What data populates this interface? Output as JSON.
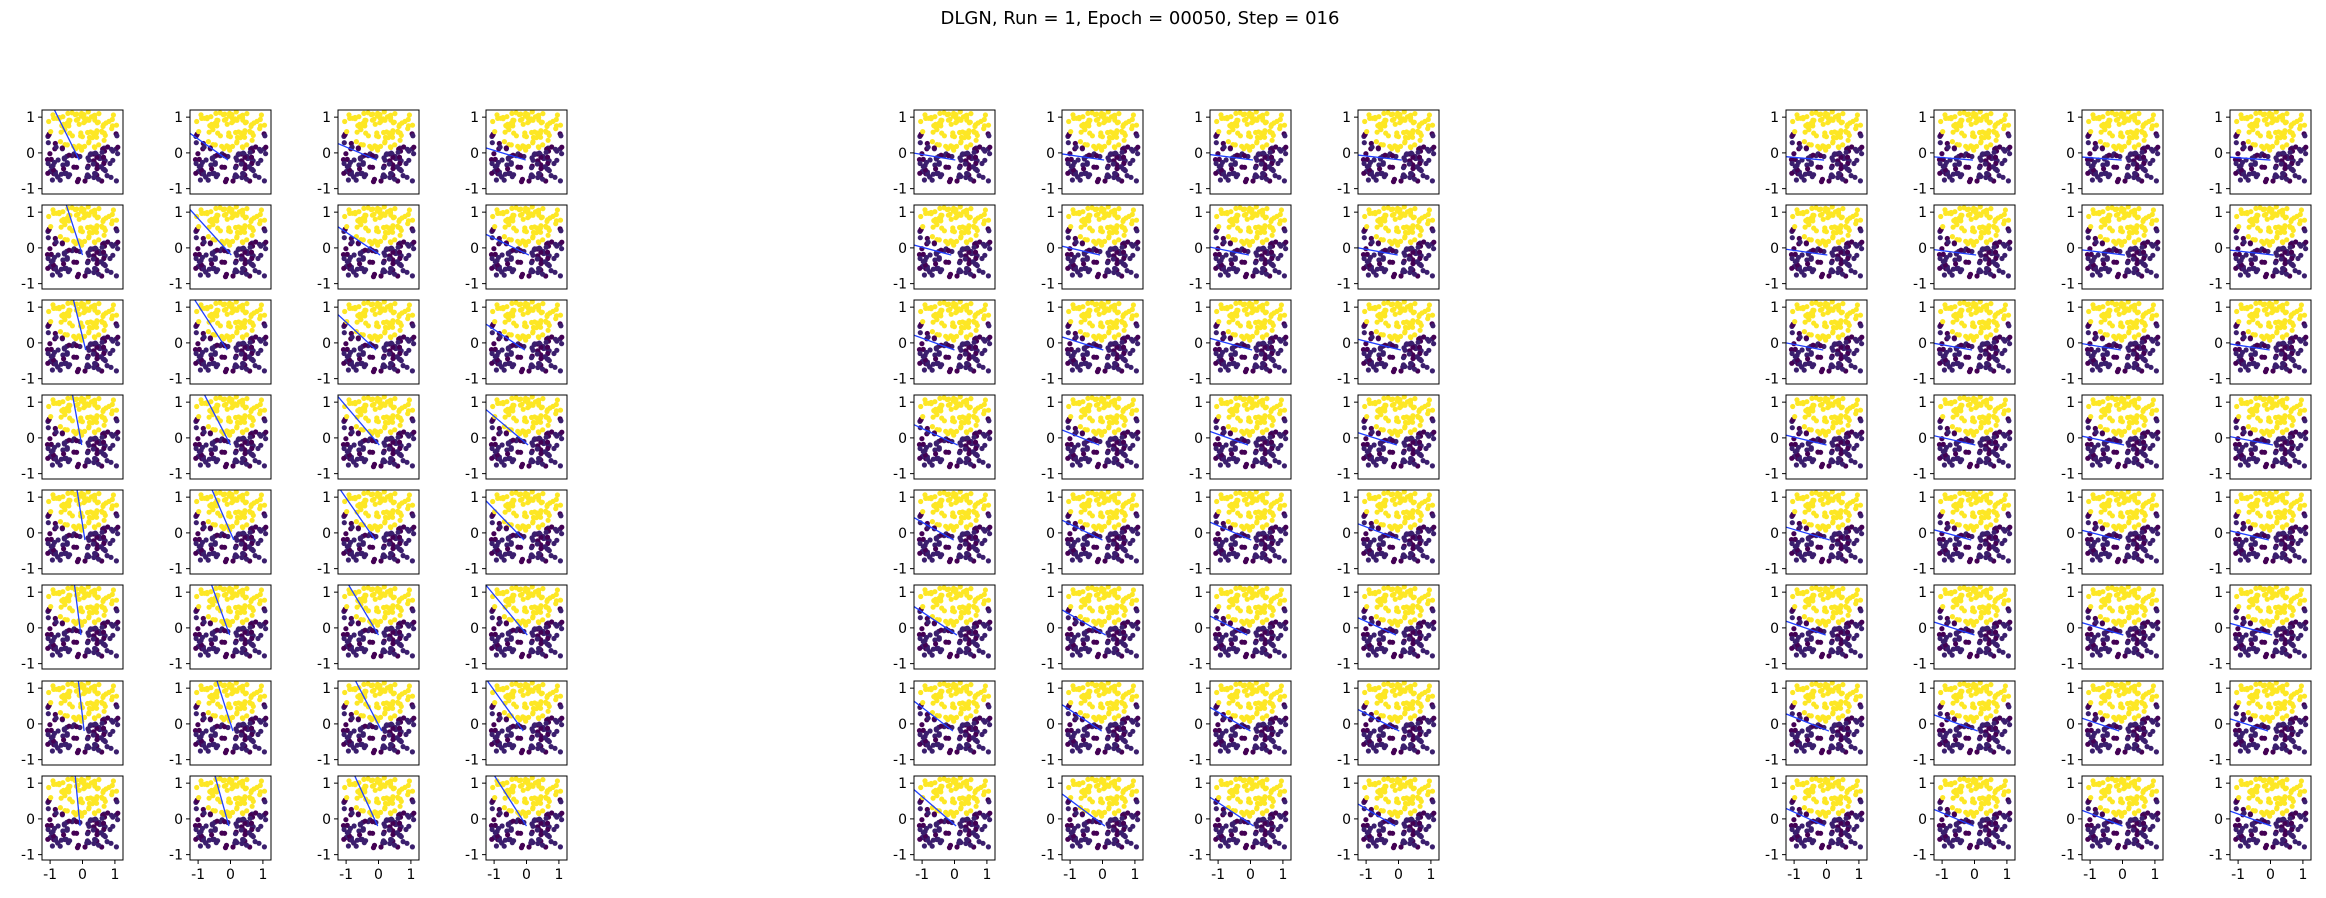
{
  "title": "DLGN, Run = 1, Epoch = 00050, Step = 016",
  "colors": {
    "yellow_class": "#fde725",
    "purple_class": "#3b1f6e",
    "purple_dark": "#440154",
    "region_blue": "#8fb8d9",
    "region_green": "#9ab35c",
    "boundary_line": "#e8101b",
    "arrow": "#1f3fff",
    "axes": "#000000"
  },
  "chart_data": {
    "type": "scatter",
    "grid": false,
    "layout": "3 groups x 8 rows x 4 columns of small subplots",
    "xlim": [
      -1.25,
      1.25
    ],
    "ylim": [
      -1.15,
      1.2
    ],
    "xticks": [
      "-1",
      "0",
      "1"
    ],
    "yticks": [
      "1",
      "0",
      "-1"
    ],
    "xtick_values": [
      -1,
      0,
      1
    ],
    "ytick_values": [
      1,
      0,
      -1
    ],
    "dataset": "two classes: yellow cap above a U-shaped curve, purple points below it",
    "decision_lines_deg": [
      [
        [
          80,
          -32,
          88,
          -12
        ],
        [
          -60,
          -40,
          -87,
          -55
        ],
        [
          30,
          45,
          -15,
          10
        ],
        [
          -50,
          -40,
          45,
          -32
        ]
      ],
      [
        [
          -15,
          -25,
          -10,
          -3
        ],
        [
          40,
          3,
          -5,
          -12
        ],
        [
          -55,
          40,
          60,
          -5
        ],
        [
          -35,
          -20,
          40,
          -5
        ]
      ],
      [
        [
          -80,
          70,
          10,
          -30
        ],
        [
          45,
          -50,
          55,
          10
        ],
        [
          -5,
          -35,
          -15,
          -45
        ],
        [
          30,
          -25,
          -35,
          -10
        ]
      ],
      [
        [
          -55,
          -30,
          50,
          -32
        ],
        [
          -50,
          -85,
          -75,
          -25
        ],
        [
          -5,
          -10,
          -5,
          -5
        ],
        [
          10,
          -75,
          -30,
          -25
        ]
      ],
      [
        [
          -35,
          50,
          -85,
          -70
        ],
        [
          -40,
          -35,
          -60,
          3
        ],
        [
          75,
          -20,
          -40,
          -8
        ],
        [
          -25,
          -15,
          -25,
          -5
        ]
      ],
      [
        [
          -30,
          -38,
          -40,
          -15
        ],
        [
          -30,
          5,
          -15,
          -45
        ],
        [
          -25,
          -20,
          -25,
          -40
        ],
        [
          -30,
          -30,
          -25,
          -25
        ]
      ],
      [
        [
          -88,
          50,
          70,
          20
        ],
        [
          20,
          50,
          60,
          30
        ],
        [
          -20,
          -25,
          -20,
          -25
        ],
        [
          -30,
          -40,
          -20,
          -45
        ]
      ],
      [
        [
          25,
          -40,
          -40,
          25
        ],
        [
          -30,
          -25,
          -5,
          -50
        ],
        [
          -35,
          -3,
          0,
          -15
        ],
        [
          50,
          -5,
          -5,
          45
        ]
      ]
    ]
  }
}
